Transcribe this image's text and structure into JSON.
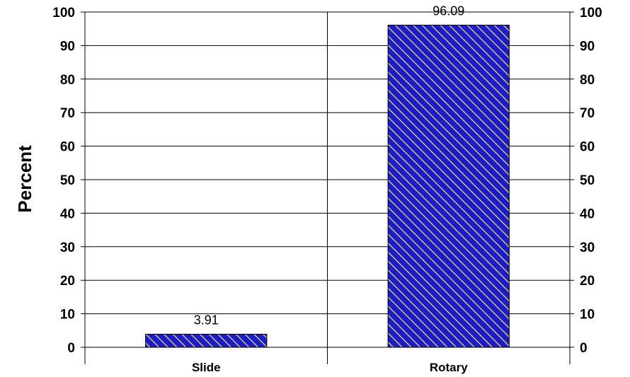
{
  "chart_data": {
    "type": "bar",
    "categories": [
      "Slide",
      "Rotary"
    ],
    "values": [
      3.91,
      96.09
    ],
    "data_labels": [
      "3.91",
      "96.09"
    ],
    "title": "",
    "xlabel": "",
    "ylabel": "Percent",
    "ylim": [
      0,
      100
    ],
    "yticks": [
      "0",
      "10",
      "20",
      "30",
      "40",
      "50",
      "60",
      "70",
      "80",
      "90",
      "100"
    ],
    "secondary_y_axis": true,
    "grid": "horizontal",
    "legend": "none",
    "bar_fill": "diagonal-hatch",
    "colors": {
      "bar_base": "#1c1cc8",
      "hatch": "#e8e070",
      "bar_border": "#000000",
      "grid": "#000000"
    }
  }
}
